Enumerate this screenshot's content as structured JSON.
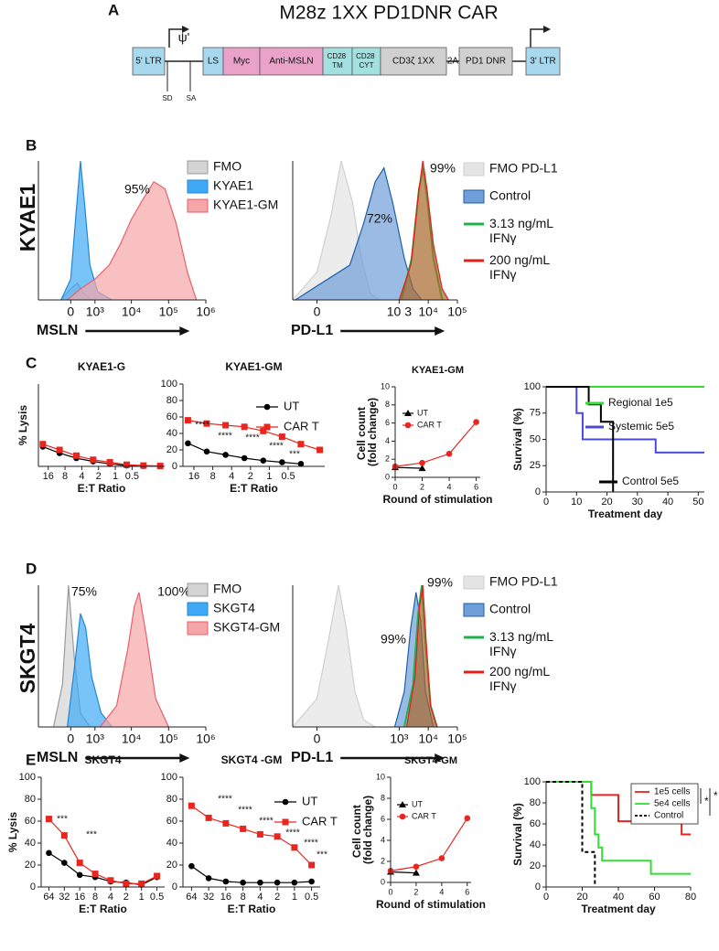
{
  "figure": {
    "panels": [
      "A",
      "B",
      "C",
      "D",
      "E"
    ],
    "row_labels": [
      "KYAE1",
      "SKGT4"
    ]
  },
  "construct": {
    "title": "M28z 1XX PD1DNR CAR",
    "psi": "ψ'",
    "sites": [
      "SD",
      "SA"
    ],
    "elements": [
      {
        "label": "5' LTR",
        "color": "#a8d8ee"
      },
      {
        "label": "LS",
        "color": "#a8d8ee"
      },
      {
        "label": "Myc",
        "color": "#eba2c9"
      },
      {
        "label": "Anti-MSLN",
        "color": "#eba2c9"
      },
      {
        "label": "CD28 TM",
        "color": "#a3e0e0"
      },
      {
        "label": "CD28 CYT",
        "color": "#a3e0e0"
      },
      {
        "label": "CD3ζ 1XX",
        "color": "#d0d0d0"
      },
      {
        "label": "2A",
        "color": "none"
      },
      {
        "label": "PD1 DNR",
        "color": "#d0d0d0"
      },
      {
        "label": "3' LTR",
        "color": "#a8d8ee"
      }
    ]
  },
  "chart_data": [
    {
      "type": "density",
      "xlabel": "MSLN",
      "xscale": "asinh",
      "xlim": [
        -1700,
        1000000
      ],
      "xticks": [
        {
          "value": 0,
          "label": "0"
        },
        {
          "value": 1000,
          "label": "10³"
        },
        {
          "value": 10000,
          "label": "10⁴"
        },
        {
          "value": 100000,
          "label": "10⁵"
        },
        {
          "value": 1000000,
          "label": "10⁶"
        }
      ],
      "ylim": [
        0,
        100
      ],
      "annotations": [
        "95%"
      ],
      "series": [
        {
          "name": "FMO",
          "color": "#9a9a9a",
          "fill": "#d4d4d4",
          "x": [
            -300,
            0,
            200,
            400,
            800
          ],
          "values": [
            0,
            8,
            12,
            5,
            0
          ]
        },
        {
          "name": "KYAE1",
          "color": "#1e88d8",
          "fill": "#3fa9f5",
          "x": [
            -300,
            0,
            150,
            300,
            450,
            700,
            1200,
            3000
          ],
          "values": [
            0,
            15,
            60,
            100,
            70,
            25,
            6,
            0
          ]
        },
        {
          "name": "KYAE1-GM",
          "color": "#e8606a",
          "fill": "#f6a5a8",
          "x": [
            -100,
            300,
            1000,
            2500,
            5000,
            10000,
            20000,
            40000,
            80000,
            160000,
            320000,
            560000
          ],
          "values": [
            0,
            8,
            15,
            25,
            40,
            58,
            72,
            85,
            80,
            55,
            20,
            0
          ]
        }
      ]
    },
    {
      "type": "density",
      "xlabel": "PD-L1",
      "xscale": "asinh",
      "xlim": [
        -10,
        100000
      ],
      "xticks": [
        {
          "value": 0,
          "label": "0"
        },
        {
          "value": 1000,
          "label": "10 3"
        },
        {
          "value": 10000,
          "label": "10⁴"
        },
        {
          "value": 100000,
          "label": "10⁵"
        }
      ],
      "ylim": [
        0,
        100
      ],
      "annotations": [
        "72%",
        "99%"
      ],
      "series": [
        {
          "name": "FMO PD-L1",
          "color": "#cfcfcf",
          "fill": "#e4e4e4",
          "x": [
            -10,
            0,
            4,
            10,
            25,
            50,
            100,
            200
          ],
          "values": [
            0,
            20,
            60,
            100,
            70,
            30,
            5,
            0
          ]
        },
        {
          "name": "Control",
          "color": "#1f5fa8",
          "fill": "#6f9fd8",
          "x": [
            -8,
            0,
            20,
            60,
            150,
            300,
            600,
            1500,
            3000,
            6000
          ],
          "values": [
            0,
            10,
            25,
            55,
            85,
            95,
            70,
            30,
            8,
            0
          ]
        },
        {
          "name": "3.13 ng/mL IFNγ",
          "color": "#22b24c",
          "fill": "none",
          "x": [
            1200,
            2700,
            4800,
            6800,
            9500,
            15000,
            30000
          ],
          "values": [
            0,
            30,
            80,
            95,
            70,
            30,
            0
          ]
        },
        {
          "name": "200 ng/mL IFNγ",
          "color": "#e0201b",
          "fill": "#a8662a",
          "x": [
            1000,
            2500,
            4500,
            6500,
            9000,
            15000,
            30000,
            50000
          ],
          "values": [
            0,
            25,
            75,
            100,
            80,
            40,
            8,
            0
          ]
        }
      ]
    },
    {
      "type": "line",
      "title": "KYAE1-G",
      "ylabel": "% Lysis",
      "xlabel": "E:T Ratio",
      "xlog": true,
      "xlim": [
        24,
        0.13
      ],
      "xticks": [
        16,
        8,
        4,
        2,
        1,
        0.5
      ],
      "ylim": [
        0,
        100
      ],
      "x": [
        20,
        10,
        5,
        2.5,
        1.25,
        0.625,
        0.3125,
        0.156
      ],
      "series": [
        {
          "color": "#000000",
          "marker": "circle",
          "values": [
            24,
            16,
            10,
            6,
            3,
            1,
            0.5,
            0.2
          ]
        },
        {
          "color": "#e8251f",
          "marker": "square",
          "values": [
            27,
            20,
            13,
            8,
            5,
            2,
            1,
            0.5
          ]
        }
      ]
    },
    {
      "type": "line",
      "title": "KYAE1-GM",
      "xlabel": "E:T Ratio",
      "xlog": true,
      "xlim": [
        24,
        0.13
      ],
      "xticks": [
        16,
        8,
        4,
        2,
        1,
        0.5
      ],
      "ylim": [
        0,
        100
      ],
      "yticks": [
        0,
        20,
        40,
        60,
        80,
        100
      ],
      "x": [
        20,
        10,
        5,
        2.5,
        1.25,
        0.625,
        0.3125,
        0.156
      ],
      "annotations": [
        "****",
        "****",
        "****",
        "****",
        "***"
      ],
      "series": [
        {
          "name": "UT",
          "color": "#000000",
          "marker": "circle",
          "values": [
            28,
            18,
            14,
            10,
            7,
            5,
            3,
            null
          ]
        },
        {
          "name": "CAR T",
          "color": "#e8251f",
          "marker": "square",
          "values": [
            56,
            52,
            50,
            48,
            43,
            36,
            27,
            20
          ]
        }
      ]
    },
    {
      "type": "line",
      "title": "KYAE1-GM",
      "ylabel": "Cell count (fold change)",
      "xlabel": "Round of stimulation",
      "xlim": [
        0,
        6.3
      ],
      "xticks": [
        0,
        2,
        4,
        6
      ],
      "ylim": [
        0,
        10
      ],
      "yticks": [
        0,
        2,
        4,
        6,
        8,
        10
      ],
      "series": [
        {
          "name": "UT",
          "color": "#000000",
          "marker": "triangle",
          "x": [
            0,
            2
          ],
          "values": [
            1.1,
            1.0
          ]
        },
        {
          "name": "CAR T",
          "color": "#e8251f",
          "marker": "circle",
          "x": [
            0,
            2,
            4,
            6
          ],
          "values": [
            1.2,
            1.6,
            2.6,
            6.1
          ]
        }
      ]
    },
    {
      "type": "step",
      "ylabel": "Survival (%)",
      "xlabel": "Treatment day",
      "xlim": [
        0,
        52
      ],
      "xticks": [
        0,
        10,
        20,
        30,
        40,
        50
      ],
      "ylim": [
        0,
        100
      ],
      "yticks": [
        0,
        25,
        50,
        75,
        100
      ],
      "series": [
        {
          "name": "Regional 1e5",
          "color": "#33dd33",
          "x": [
            0,
            52
          ],
          "values": [
            100,
            100
          ]
        },
        {
          "name": "Systemic 5e5",
          "color": "#4b4bd6",
          "x": [
            0,
            10,
            12,
            36,
            52
          ],
          "values": [
            100,
            75,
            50,
            37.5,
            37.5
          ]
        },
        {
          "name": "Control 5e5",
          "color": "#000000",
          "x": [
            0,
            14,
            18,
            22
          ],
          "values": [
            100,
            83.3,
            66.7,
            0
          ]
        }
      ]
    },
    {
      "type": "density",
      "xlabel": "MSLN",
      "xscale": "asinh",
      "xlim": [
        -1700,
        1000000
      ],
      "xticks": [
        {
          "value": 0,
          "label": "0"
        },
        {
          "value": 1000,
          "label": "10³"
        },
        {
          "value": 10000,
          "label": "10⁴"
        },
        {
          "value": 100000,
          "label": "10⁵"
        },
        {
          "value": 1000000,
          "label": "10⁶"
        }
      ],
      "ylim": [
        0,
        100
      ],
      "annotations": [
        "75%",
        "100%"
      ],
      "series": [
        {
          "name": "FMO",
          "color": "#9a9a9a",
          "fill": "#d4d4d4",
          "x": [
            -600,
            -250,
            -65,
            100,
            300,
            700
          ],
          "values": [
            0,
            30,
            100,
            50,
            10,
            0
          ]
        },
        {
          "name": "SKGT4",
          "color": "#1e88d8",
          "fill": "#3fa9f5",
          "x": [
            -100,
            100,
            300,
            500,
            800,
            1500,
            3000
          ],
          "values": [
            0,
            40,
            80,
            70,
            35,
            10,
            0
          ]
        },
        {
          "name": "SKGT4-GM",
          "color": "#e8606a",
          "fill": "#f6a5a8",
          "x": [
            1400,
            4000,
            8000,
            12000,
            16000,
            25000,
            45000,
            100000
          ],
          "values": [
            0,
            15,
            55,
            85,
            95,
            65,
            20,
            0
          ]
        }
      ]
    },
    {
      "type": "density",
      "xlabel": "PD-L1",
      "xscale": "asinh",
      "xlim": [
        -10,
        100000
      ],
      "xticks": [
        {
          "value": 0,
          "label": "0"
        },
        {
          "value": 1000,
          "label": "10³"
        },
        {
          "value": 10000,
          "label": "10⁴"
        },
        {
          "value": 100000,
          "label": "10⁵"
        }
      ],
      "ylim": [
        0,
        100
      ],
      "annotations": [
        "99%",
        "99%"
      ],
      "series": [
        {
          "name": "FMO PD-L1",
          "color": "#cfcfcf",
          "fill": "#e4e4e4",
          "x": [
            -10,
            0,
            3,
            8,
            15,
            30,
            60,
            150
          ],
          "values": [
            0,
            20,
            60,
            100,
            70,
            25,
            5,
            0
          ]
        },
        {
          "name": "Control",
          "color": "#1f5fa8",
          "fill": "#6f9fd8",
          "x": [
            700,
            1500,
            2500,
            3800,
            5500,
            8000,
            15000
          ],
          "values": [
            0,
            25,
            70,
            95,
            75,
            25,
            0
          ]
        },
        {
          "name": "3.13 ng/mL IFNγ",
          "color": "#22b24c",
          "fill": "none",
          "x": [
            1500,
            3000,
            4500,
            6000,
            8000,
            12000,
            20000
          ],
          "values": [
            0,
            30,
            80,
            100,
            60,
            15,
            0
          ]
        },
        {
          "name": "200 ng/mL IFNγ",
          "color": "#e0201b",
          "fill": "#a8662a",
          "x": [
            1800,
            3500,
            5000,
            6500,
            8500,
            12000,
            20000
          ],
          "values": [
            0,
            35,
            85,
            100,
            60,
            15,
            0
          ]
        }
      ]
    },
    {
      "type": "line",
      "title": "SKGT4",
      "ylabel": "% Lysis",
      "xlabel": "E:T Ratio",
      "categories": [
        "64",
        "32",
        "16",
        "8",
        "4",
        "2",
        "1",
        "0.5"
      ],
      "ylim": [
        0,
        100
      ],
      "yticks": [
        0,
        20,
        40,
        60,
        80,
        100
      ],
      "annotations": [
        "***",
        "***"
      ],
      "series": [
        {
          "color": "#000000",
          "marker": "circle",
          "values": [
            31,
            22,
            11,
            9,
            5,
            4,
            2,
            9
          ]
        },
        {
          "color": "#e8251f",
          "marker": "square",
          "values": [
            62,
            47,
            22,
            12,
            6,
            3,
            3,
            10
          ]
        }
      ]
    },
    {
      "type": "line",
      "title": "SKGT4 -GM",
      "xlabel": "E:T Ratio",
      "categories": [
        "64",
        "32",
        "16",
        "8",
        "4",
        "2",
        "1",
        "0.5"
      ],
      "ylim": [
        0,
        100
      ],
      "yticks": [
        0,
        20,
        40,
        60,
        80,
        100
      ],
      "annotations": [
        "****",
        "****",
        "****",
        "****",
        "****",
        "***"
      ],
      "series": [
        {
          "name": "UT",
          "color": "#000000",
          "marker": "circle",
          "values": [
            19,
            8,
            5,
            4,
            4,
            4,
            4,
            5
          ]
        },
        {
          "name": "CAR T",
          "color": "#e8251f",
          "marker": "square",
          "values": [
            74,
            63,
            58,
            53,
            48,
            46,
            36,
            20
          ]
        }
      ]
    },
    {
      "type": "line",
      "title": "SKGT4-GM",
      "ylabel": "Cell count (fold change)",
      "xlabel": "Round of stimulation",
      "xlim": [
        0,
        6.3
      ],
      "xticks": [
        0,
        2,
        4,
        6
      ],
      "ylim": [
        0,
        10
      ],
      "yticks": [
        0,
        2,
        4,
        6,
        8,
        10
      ],
      "series": [
        {
          "name": "UT",
          "color": "#000000",
          "marker": "triangle",
          "x": [
            0,
            2
          ],
          "values": [
            1.0,
            0.9
          ]
        },
        {
          "name": "CAR T",
          "color": "#e8251f",
          "marker": "circle",
          "x": [
            0,
            2,
            4,
            6
          ],
          "values": [
            1.1,
            1.5,
            2.3,
            6.1
          ]
        }
      ]
    },
    {
      "type": "step",
      "ylabel": "Survival (%)",
      "xlabel": "Treatment day",
      "xlim": [
        0,
        80
      ],
      "xticks": [
        0,
        20,
        40,
        60,
        80
      ],
      "ylim": [
        0,
        100
      ],
      "yticks": [
        0,
        20,
        40,
        60,
        80,
        100
      ],
      "significance": [
        "*",
        "*"
      ],
      "series": [
        {
          "name": "1e5 cells",
          "color": "#e8251f",
          "x": [
            0,
            25,
            40,
            75,
            80
          ],
          "values": [
            100,
            87.5,
            62.5,
            50,
            50
          ]
        },
        {
          "name": "5e4 cells",
          "color": "#33dd33",
          "x": [
            0,
            25,
            27,
            29,
            31,
            58,
            80
          ],
          "values": [
            100,
            75,
            50,
            37.5,
            25,
            12.5,
            12.5
          ]
        },
        {
          "name": "Control",
          "color": "#000000",
          "dash": true,
          "x": [
            0,
            20,
            27
          ],
          "values": [
            100,
            33.3,
            0
          ]
        }
      ]
    }
  ]
}
